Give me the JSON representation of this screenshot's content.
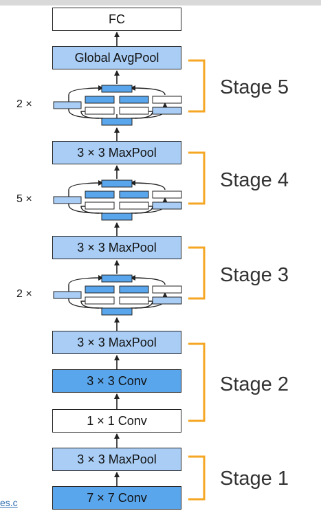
{
  "diagram": {
    "blocks": {
      "fc": "FC",
      "gap": "Global AvgPool",
      "maxpool4": "3 × 3 MaxPool",
      "maxpool3": "3 × 3 MaxPool",
      "maxpool2": "3 × 3 MaxPool",
      "conv3": "3 × 3 Conv",
      "conv1": "1 × 1 Conv",
      "maxpool1": "3 × 3 MaxPool",
      "conv7": "7 × 7 Conv"
    },
    "stages": [
      "Stage 5",
      "Stage 4",
      "Stage 3",
      "Stage 2",
      "Stage 1"
    ],
    "repeats": {
      "stage5": "2 ×",
      "stage4": "5 ×",
      "stage3": "2 ×"
    },
    "link_fragment": "es.c"
  },
  "colors": {
    "light_blue": "#a9cdf5",
    "dark_blue": "#5aa6ec",
    "white": "#ffffff",
    "bracket_orange": "#f5a623",
    "stroke": "#222222"
  }
}
